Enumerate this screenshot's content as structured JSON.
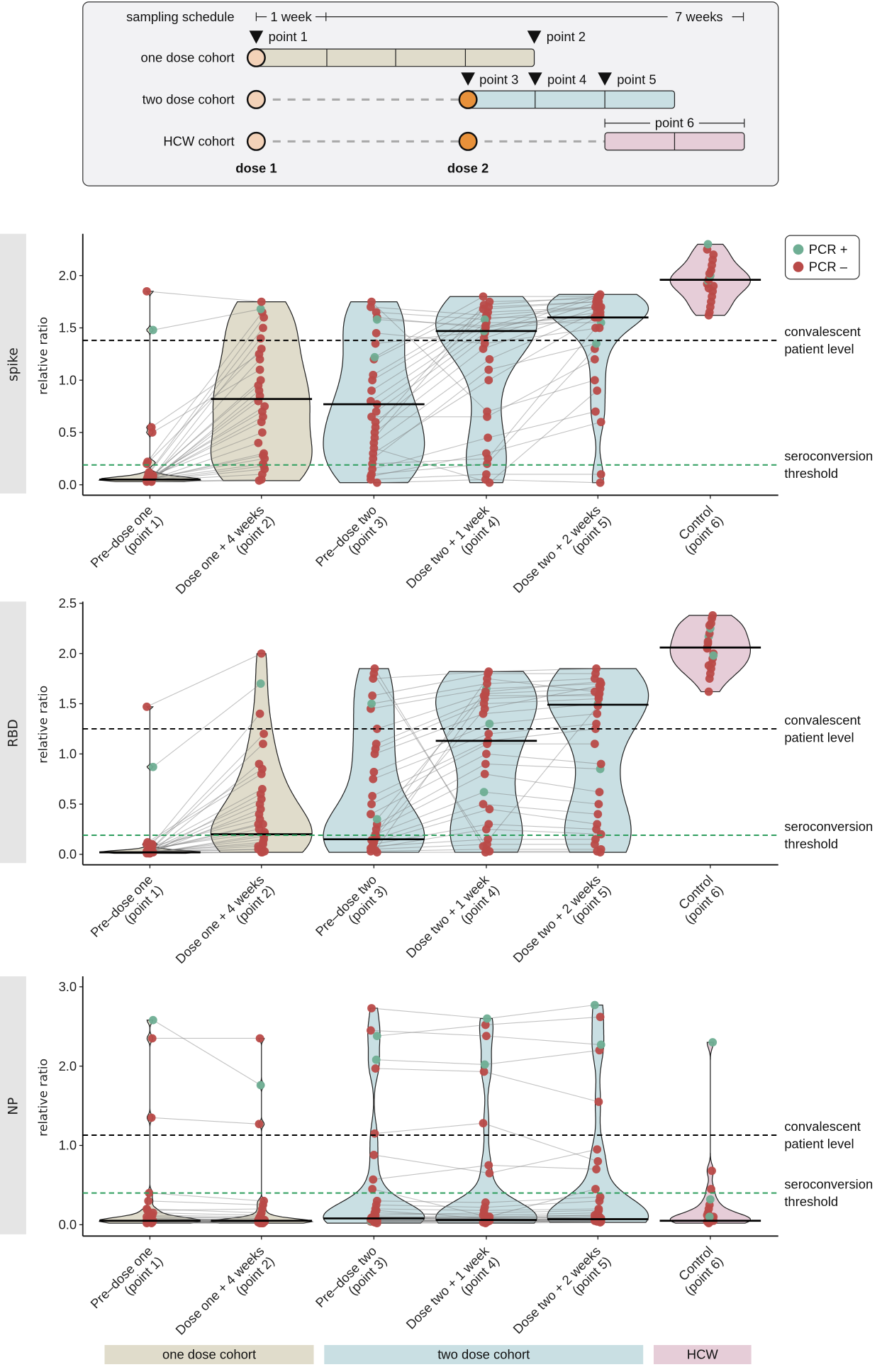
{
  "schedule": {
    "title": "sampling schedule",
    "week_label": "1 week",
    "end_label": "7 weeks",
    "rows": [
      "one dose cohort",
      "two dose cohort",
      "HCW cohort"
    ],
    "points": [
      "point 1",
      "point 2",
      "point 3",
      "point 4",
      "point 5",
      "point 6"
    ],
    "doses": [
      "dose 1",
      "dose 2"
    ]
  },
  "colors": {
    "one_dose": "#e0dccb",
    "two_dose": "#c9dfe3",
    "hcw": "#e6cdd8",
    "pcr_pos": "#6fae94",
    "pcr_neg": "#b94a48",
    "dose1": "#f3d2b8",
    "dose2": "#e8913a",
    "convalescent_line": "#000000",
    "seroconversion_line": "#2e9e5e",
    "strip": "#e5e5e5"
  },
  "legend": {
    "items": [
      {
        "label": "PCR +",
        "key": "pcr_pos"
      },
      {
        "label": "PCR –",
        "key": "pcr_neg"
      }
    ],
    "placement": "top-right"
  },
  "cohort_bar": [
    "one dose cohort",
    "two dose cohort",
    "HCW"
  ],
  "chart_data": [
    {
      "type": "violin",
      "strip": "spike",
      "ylabel": "relative ratio",
      "yticks": [
        0,
        0.5,
        1.0,
        1.5,
        2.0
      ],
      "categories": [
        [
          "Pre–dose one",
          "(point 1)"
        ],
        [
          "Dose one + 4 weeks",
          "(point 2)"
        ],
        [
          "Pre–dose two",
          "(point 3)"
        ],
        [
          "Dose two + 1 week",
          "(point 4)"
        ],
        [
          "Dose two + 2 weeks",
          "(point 5)"
        ],
        [
          "Control",
          "(point 6)"
        ]
      ],
      "reference_lines": [
        {
          "value": 1.38,
          "label": [
            "convalescent",
            "patient level"
          ],
          "kind": "convalescent"
        },
        {
          "value": 0.19,
          "label": [
            "seroconversion",
            "threshold"
          ],
          "kind": "seroconversion"
        }
      ],
      "medians": [
        0.05,
        0.82,
        0.77,
        1.47,
        1.6,
        1.96
      ],
      "groups": [
        {
          "values": [
            0.03,
            0.04,
            0.05,
            0.05,
            0.06,
            0.04,
            0.03,
            0.07,
            0.08,
            0.05,
            0.06,
            0.1,
            0.12,
            0.04,
            0.05,
            0.03,
            0.06,
            0.09,
            0.2,
            0.22,
            0.05,
            0.04,
            0.06,
            0.08,
            0.55,
            0.5,
            1.48,
            1.85,
            0.07,
            0.05
          ],
          "pcr_pos": [
            26
          ]
        },
        {
          "values": [
            0.05,
            0.1,
            0.2,
            0.3,
            0.25,
            0.8,
            0.9,
            1.2,
            1.4,
            0.6,
            0.7,
            1.5,
            1.6,
            0.15,
            0.4,
            0.04,
            0.85,
            1.0,
            1.3,
            1.65,
            0.28,
            0.18,
            0.75,
            0.95,
            1.25,
            1.1,
            1.68,
            1.75,
            0.5,
            0.65
          ],
          "pcr_pos": [
            26
          ]
        },
        {
          "values": [
            0.02,
            0.05,
            0.1,
            0.2,
            0.3,
            0.4,
            0.5,
            0.6,
            0.7,
            0.77,
            0.8,
            0.9,
            1.0,
            1.05,
            1.2,
            1.22,
            1.35,
            1.45,
            1.6,
            1.7,
            1.75,
            0.15,
            0.25,
            0.35,
            0.45,
            0.55,
            1.65,
            1.58,
            0.08,
            0.65
          ],
          "pcr_pos": [
            15,
            27
          ]
        },
        {
          "values": [
            0.05,
            0.1,
            0.2,
            0.25,
            1.0,
            1.2,
            1.3,
            1.4,
            1.45,
            1.5,
            1.55,
            1.6,
            1.65,
            1.7,
            1.75,
            1.8,
            1.47,
            1.35,
            1.5,
            1.62,
            0.7,
            0.45,
            1.1,
            0.02,
            1.68,
            1.72,
            1.58,
            1.52,
            0.3,
            0.65
          ],
          "pcr_pos": [
            16,
            26
          ]
        },
        {
          "values": [
            0.02,
            0.1,
            1.3,
            1.5,
            1.6,
            1.65,
            1.7,
            1.75,
            1.8,
            1.82,
            1.55,
            1.6,
            1.7,
            1.75,
            1.78,
            1.8,
            1.6,
            1.5,
            1.65,
            1.7,
            1.0,
            0.7,
            1.35,
            0.9,
            1.75,
            1.8,
            1.7,
            1.62,
            0.6,
            1.2
          ],
          "pcr_pos": [
            22,
            10
          ]
        },
        {
          "values": [
            1.62,
            1.65,
            1.7,
            1.75,
            1.8,
            1.85,
            1.9,
            1.92,
            1.95,
            1.96,
            1.98,
            2.0,
            2.05,
            2.1,
            2.15,
            2.2,
            2.25,
            2.3,
            1.88,
            2.02
          ],
          "pcr_pos": [
            17,
            11,
            8
          ]
        }
      ],
      "paired": [
        [
          0,
          1
        ],
        [
          2,
          3
        ],
        [
          3,
          4
        ]
      ]
    },
    {
      "type": "violin",
      "strip": "RBD",
      "ylabel": "relative ratio",
      "yticks": [
        0,
        0.5,
        1.0,
        1.5,
        2.0,
        2.5
      ],
      "categories": [
        [
          "Pre–dose one",
          "(point 1)"
        ],
        [
          "Dose one + 4 weeks",
          "(point 2)"
        ],
        [
          "Pre–dose two",
          "(point 3)"
        ],
        [
          "Dose two + 1 week",
          "(point 4)"
        ],
        [
          "Dose two + 2 weeks",
          "(point 5)"
        ],
        [
          "Control",
          "(point 6)"
        ]
      ],
      "reference_lines": [
        {
          "value": 1.25,
          "label": [
            "convalescent",
            "patient level"
          ],
          "kind": "convalescent"
        },
        {
          "value": 0.19,
          "label": [
            "seroconversion",
            "threshold"
          ],
          "kind": "seroconversion"
        }
      ],
      "medians": [
        0.02,
        0.2,
        0.15,
        1.13,
        1.49,
        2.06
      ],
      "groups": [
        {
          "values": [
            0.01,
            0.02,
            0.03,
            0.02,
            0.01,
            0.04,
            0.05,
            0.03,
            0.02,
            0.1,
            0.12,
            0.02,
            0.03,
            0.01,
            0.02,
            0.05,
            0.08,
            0.02,
            0.03,
            0.04,
            0.02,
            0.01,
            0.06,
            0.03,
            0.02,
            0.1,
            0.87,
            1.47,
            0.02,
            0.03
          ],
          "pcr_pos": [
            26
          ]
        },
        {
          "values": [
            0.02,
            0.05,
            0.1,
            0.15,
            0.2,
            0.3,
            0.4,
            0.5,
            0.6,
            0.8,
            0.85,
            1.1,
            1.2,
            0.03,
            0.08,
            0.25,
            0.35,
            0.45,
            0.55,
            0.65,
            0.12,
            0.18,
            0.22,
            0.05,
            0.9,
            1.4,
            1.7,
            2.0,
            0.02,
            0.3
          ],
          "pcr_pos": [
            26
          ]
        },
        {
          "values": [
            0.02,
            0.03,
            0.05,
            0.08,
            0.1,
            0.12,
            0.15,
            0.2,
            0.25,
            0.3,
            0.4,
            0.5,
            0.58,
            0.75,
            0.82,
            1.0,
            1.05,
            1.1,
            1.25,
            1.45,
            1.5,
            1.58,
            1.75,
            1.8,
            1.85,
            0.04,
            0.18,
            0.35,
            0.06,
            0.14
          ],
          "pcr_pos": [
            20,
            27
          ]
        },
        {
          "values": [
            0.02,
            0.05,
            0.1,
            0.15,
            0.3,
            0.45,
            0.5,
            0.62,
            0.8,
            0.9,
            1.0,
            1.1,
            1.13,
            1.2,
            1.3,
            1.4,
            1.5,
            1.55,
            1.6,
            1.65,
            1.7,
            1.8,
            1.82,
            0.03,
            0.08,
            1.58,
            1.45,
            1.62,
            0.25,
            1.75
          ],
          "pcr_pos": [
            7,
            14,
            19
          ]
        },
        {
          "values": [
            0.02,
            0.05,
            0.1,
            0.15,
            0.25,
            0.3,
            0.4,
            0.5,
            0.62,
            0.85,
            0.9,
            1.1,
            1.25,
            1.3,
            1.4,
            1.5,
            1.55,
            1.6,
            1.65,
            1.7,
            1.75,
            1.8,
            1.85,
            0.03,
            1.48,
            1.58,
            1.68,
            1.72,
            0.2,
            1.62
          ],
          "pcr_pos": [
            9,
            15
          ]
        },
        {
          "values": [
            1.62,
            1.75,
            1.8,
            1.85,
            1.9,
            1.95,
            2.0,
            2.05,
            2.1,
            2.17,
            2.2,
            2.25,
            2.3,
            2.35,
            2.38,
            1.98,
            2.06,
            2.12,
            1.88,
            2.28
          ],
          "pcr_pos": [
            15,
            9,
            11
          ]
        }
      ],
      "paired": [
        [
          0,
          1
        ],
        [
          2,
          3
        ],
        [
          3,
          4
        ]
      ]
    },
    {
      "type": "violin",
      "strip": "NP",
      "ylabel": "relative ratio",
      "yticks": [
        0,
        1.0,
        2.0,
        3.0
      ],
      "categories": [
        [
          "Pre–dose one",
          "(point 1)"
        ],
        [
          "Dose one + 4 weeks",
          "(point 2)"
        ],
        [
          "Pre–dose two",
          "(point 3)"
        ],
        [
          "Dose two + 1 week",
          "(point 4)"
        ],
        [
          "Dose two + 2 weeks",
          "(point 5)"
        ],
        [
          "Control",
          "(point 6)"
        ]
      ],
      "reference_lines": [
        {
          "value": 1.13,
          "label": [
            "convalescent",
            "patient level"
          ],
          "kind": "convalescent"
        },
        {
          "value": 0.4,
          "label": [
            "seroconversion",
            "threshold"
          ],
          "kind": "seroconversion"
        }
      ],
      "medians": [
        0.05,
        0.05,
        0.08,
        0.06,
        0.07,
        0.05
      ],
      "groups": [
        {
          "values": [
            0.02,
            0.03,
            0.05,
            0.04,
            0.06,
            0.08,
            0.1,
            0.12,
            0.15,
            0.2,
            0.05,
            0.03,
            0.04,
            0.06,
            0.07,
            0.02,
            0.03,
            0.05,
            0.1,
            0.18,
            0.3,
            0.4,
            0.05,
            0.04,
            1.35,
            2.35,
            2.58,
            0.06,
            0.03,
            0.08
          ],
          "pcr_pos": [
            26
          ]
        },
        {
          "values": [
            0.02,
            0.03,
            0.04,
            0.05,
            0.06,
            0.05,
            0.08,
            0.1,
            0.12,
            0.15,
            0.03,
            0.02,
            0.05,
            0.04,
            0.06,
            0.03,
            0.02,
            0.04,
            0.08,
            0.2,
            0.25,
            0.3,
            0.04,
            0.03,
            1.27,
            2.35,
            1.76,
            0.05,
            0.02,
            0.06
          ],
          "pcr_pos": [
            26
          ]
        },
        {
          "values": [
            0.02,
            0.04,
            0.05,
            0.06,
            0.08,
            0.1,
            0.15,
            0.2,
            0.25,
            0.3,
            0.05,
            0.08,
            0.45,
            0.57,
            0.88,
            1.15,
            1.97,
            2.08,
            2.38,
            2.45,
            2.73,
            0.06,
            0.1,
            0.04,
            0.03,
            0.12,
            0.18,
            0.05,
            0.07,
            0.09
          ],
          "pcr_pos": [
            17,
            18,
            10
          ]
        },
        {
          "values": [
            0.02,
            0.03,
            0.05,
            0.06,
            0.08,
            0.1,
            0.12,
            0.18,
            0.22,
            0.28,
            0.05,
            0.06,
            0.1,
            0.75,
            0.65,
            1.28,
            1.93,
            2.02,
            2.52,
            2.38,
            2.6,
            0.04,
            0.07,
            0.05,
            0.03,
            0.15,
            0.08,
            0.06,
            0.09,
            0.1
          ],
          "pcr_pos": [
            17,
            20
          ]
        },
        {
          "values": [
            0.03,
            0.04,
            0.05,
            0.07,
            0.1,
            0.12,
            0.15,
            0.2,
            0.3,
            0.35,
            0.06,
            0.08,
            0.45,
            0.7,
            0.95,
            0.8,
            1.55,
            2.2,
            2.62,
            2.27,
            2.77,
            0.05,
            0.06,
            0.04,
            0.05,
            0.18,
            0.1,
            0.07,
            0.08,
            0.12
          ],
          "pcr_pos": [
            19,
            20
          ]
        },
        {
          "values": [
            0.02,
            0.03,
            0.04,
            0.05,
            0.06,
            0.08,
            0.1,
            0.12,
            0.15,
            0.2,
            0.25,
            0.32,
            0.45,
            0.68,
            2.3,
            0.05,
            0.04,
            0.03,
            0.06,
            0.1
          ],
          "pcr_pos": [
            14,
            11,
            19
          ]
        }
      ],
      "paired": [
        [
          0,
          1
        ],
        [
          2,
          3
        ],
        [
          3,
          4
        ]
      ]
    }
  ]
}
